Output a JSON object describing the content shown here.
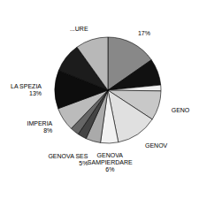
{
  "chart_data": {
    "type": "pie",
    "values": [
      17,
      9,
      2,
      10,
      14,
      6,
      5,
      3,
      3,
      8,
      13,
      10,
      11
    ],
    "categories": [
      "17%",
      null,
      null,
      "GENO",
      "GENOV",
      "GENOVA\nSAMPIERDARE\n6%",
      "GENOVA SES\n5%",
      null,
      null,
      "IMPERIA\n8%",
      "LA SPEZIA\n13%",
      null,
      "...URE"
    ],
    "colors": [
      "#888888",
      "#111111",
      "#f0f0f0",
      "#c8c8c8",
      "#e0e0e0",
      "#f2f2f2",
      "#aaaaaa",
      "#444444",
      "#666666",
      "#bbbbbb",
      "#0d0d0d",
      "#1c1c1c",
      "#b8b8b8"
    ]
  }
}
